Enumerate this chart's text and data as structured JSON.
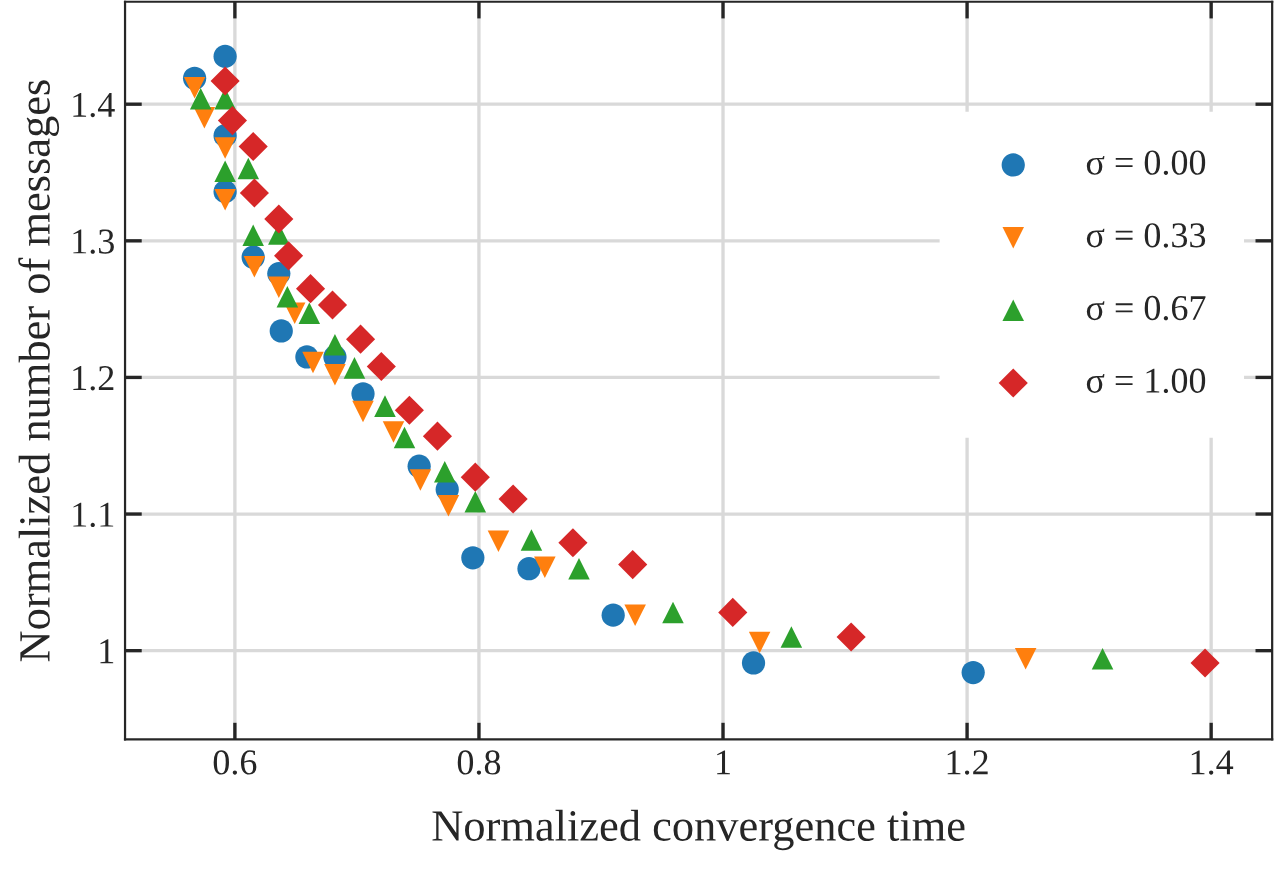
{
  "chart_data": {
    "type": "scatter",
    "xlabel": "Normalized convergence time",
    "ylabel": "Normalized number of messages",
    "xlim": [
      0.51,
      1.45
    ],
    "ylim": [
      0.935,
      1.475
    ],
    "xticks": [
      0.6,
      0.8,
      1,
      1.2,
      1.4
    ],
    "yticks": [
      1,
      1.1,
      1.2,
      1.3,
      1.4
    ],
    "grid": true,
    "legend": "right",
    "series": [
      {
        "name": "σ = 0.00",
        "color": "#1f77b4",
        "marker": "circle",
        "x": [
          0.567,
          0.592,
          0.592,
          0.592,
          0.615,
          0.636,
          0.638,
          0.659,
          0.682,
          0.705,
          0.751,
          0.774,
          0.795,
          0.841,
          0.91,
          1.025,
          1.205
        ],
        "values": [
          1.419,
          1.435,
          1.377,
          1.336,
          1.288,
          1.276,
          1.234,
          1.215,
          1.215,
          1.188,
          1.135,
          1.118,
          1.068,
          1.06,
          1.026,
          0.991,
          0.984
        ]
      },
      {
        "name": "σ = 0.33",
        "color": "#ff7f0e",
        "marker": "triangle_down",
        "x": [
          0.567,
          0.575,
          0.592,
          0.592,
          0.616,
          0.636,
          0.649,
          0.664,
          0.682,
          0.705,
          0.73,
          0.752,
          0.775,
          0.816,
          0.854,
          0.928,
          1.03,
          1.248
        ],
        "values": [
          1.412,
          1.39,
          1.368,
          1.33,
          1.281,
          1.266,
          1.247,
          1.211,
          1.202,
          1.175,
          1.16,
          1.125,
          1.106,
          1.08,
          1.061,
          1.026,
          1.006,
          0.994
        ]
      },
      {
        "name": "σ = 0.67",
        "color": "#2ca02c",
        "marker": "triangle",
        "x": [
          0.572,
          0.592,
          0.592,
          0.611,
          0.615,
          0.636,
          0.643,
          0.661,
          0.682,
          0.698,
          0.723,
          0.739,
          0.772,
          0.797,
          0.843,
          0.882,
          0.959,
          1.056,
          1.311
        ],
        "values": [
          1.404,
          1.404,
          1.351,
          1.353,
          1.304,
          1.305,
          1.259,
          1.247,
          1.224,
          1.207,
          1.179,
          1.156,
          1.131,
          1.109,
          1.081,
          1.06,
          1.028,
          1.01,
          0.994
        ]
      },
      {
        "name": "σ = 1.00",
        "color": "#d62728",
        "marker": "diamond",
        "x": [
          0.592,
          0.598,
          0.615,
          0.616,
          0.636,
          0.644,
          0.662,
          0.68,
          0.703,
          0.72,
          0.743,
          0.766,
          0.797,
          0.828,
          0.877,
          0.926,
          1.008,
          1.105,
          1.395
        ],
        "values": [
          1.417,
          1.388,
          1.369,
          1.335,
          1.316,
          1.289,
          1.265,
          1.253,
          1.228,
          1.208,
          1.176,
          1.157,
          1.127,
          1.111,
          1.079,
          1.063,
          1.028,
          1.01,
          0.991
        ]
      }
    ]
  }
}
